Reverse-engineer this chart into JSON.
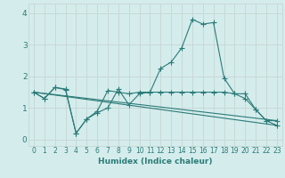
{
  "xlabel": "Humidex (Indice chaleur)",
  "xlim": [
    -0.5,
    23.5
  ],
  "ylim": [
    -0.2,
    4.3
  ],
  "xticks": [
    0,
    1,
    2,
    3,
    4,
    5,
    6,
    7,
    8,
    9,
    10,
    11,
    12,
    13,
    14,
    15,
    16,
    17,
    18,
    19,
    20,
    21,
    22,
    23
  ],
  "yticks": [
    0,
    1,
    2,
    3,
    4
  ],
  "bg_color": "#d4edec",
  "line_color": "#2b7b78",
  "grid_color": "#c8d8d6",
  "line1_x": [
    0,
    1,
    2,
    3,
    4,
    5,
    6,
    7,
    8,
    9,
    10,
    11,
    12,
    13,
    14,
    15,
    16,
    17,
    18,
    19,
    20,
    21,
    22,
    23
  ],
  "line1_y": [
    1.5,
    1.3,
    1.65,
    1.6,
    0.2,
    0.65,
    0.85,
    1.0,
    1.6,
    1.1,
    1.45,
    1.5,
    2.25,
    2.45,
    2.9,
    3.8,
    3.65,
    3.7,
    1.95,
    1.45,
    1.45,
    0.95,
    0.6,
    0.6
  ],
  "line2_x": [
    0,
    1,
    2,
    3,
    4,
    5,
    6,
    7,
    8,
    9,
    10,
    11,
    12,
    13,
    14,
    15,
    16,
    17,
    18,
    19,
    20,
    21,
    22,
    23
  ],
  "line2_y": [
    1.5,
    1.3,
    1.65,
    1.58,
    0.2,
    0.65,
    0.9,
    1.55,
    1.5,
    1.45,
    1.5,
    1.5,
    1.5,
    1.5,
    1.5,
    1.5,
    1.5,
    1.5,
    1.5,
    1.45,
    1.3,
    0.95,
    0.6,
    0.45
  ],
  "line3_x": [
    0,
    23
  ],
  "line3_y": [
    1.5,
    0.45
  ],
  "line4_x": [
    0,
    23
  ],
  "line4_y": [
    1.5,
    0.6
  ],
  "marker": "+",
  "markersize": 4,
  "lw": 0.8
}
